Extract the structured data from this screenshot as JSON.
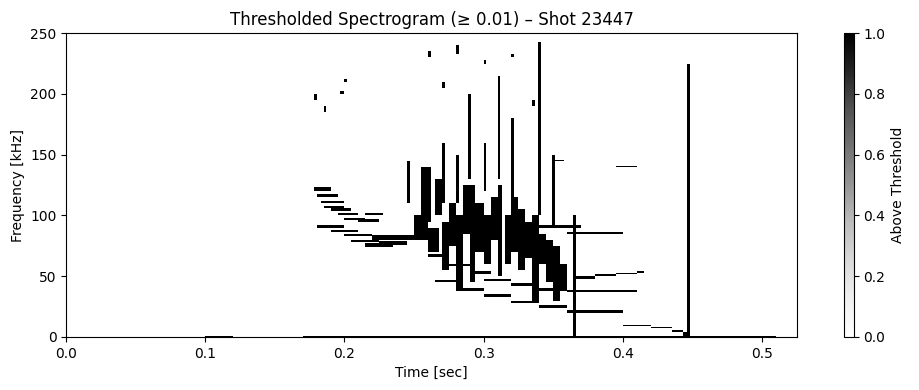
{
  "chart_data": {
    "type": "heatmap",
    "title": "Thresholded Spectrogram (≥ 0.01) – Shot 23447",
    "x_label": "Time [sec]",
    "y_label": "Frequency [kHz]",
    "xlim": [
      0,
      0.525
    ],
    "xticks": [
      {
        "value": 0,
        "label": "0.0"
      },
      0.1,
      0.2,
      0.3,
      0.4,
      0.5
    ],
    "ylim": [
      0,
      250
    ],
    "yticks": [
      0,
      50,
      100,
      150,
      200,
      250
    ],
    "color": "#000000",
    "colorbar_label": "Above Threshold",
    "colorbar_range": [
      0,
      1
    ],
    "colorbar_ticks": [
      {
        "value": 0,
        "label": "0.0"
      },
      0.2,
      0.4,
      0.6,
      0.8,
      {
        "value": 1,
        "label": "1.0"
      }
    ],
    "cells": [
      [
        0.178,
        0.19,
        120,
        123
      ],
      [
        0.18,
        0.195,
        115,
        118
      ],
      [
        0.183,
        0.2,
        110,
        112
      ],
      [
        0.19,
        0.205,
        104,
        106
      ],
      [
        0.195,
        0.21,
        100,
        102
      ],
      [
        0.2,
        0.215,
        96,
        98
      ],
      [
        0.185,
        0.2,
        106,
        108
      ],
      [
        0.18,
        0.2,
        90,
        92
      ],
      [
        0.19,
        0.21,
        86,
        88
      ],
      [
        0.2,
        0.22,
        83,
        85
      ],
      [
        0.205,
        0.225,
        78,
        80
      ],
      [
        0.215,
        0.235,
        74,
        77
      ],
      [
        0.22,
        0.25,
        80,
        84
      ],
      [
        0.225,
        0.245,
        76,
        79
      ],
      [
        0.21,
        0.225,
        95,
        97
      ],
      [
        0.215,
        0.228,
        100,
        102
      ],
      [
        0.25,
        0.26,
        80,
        100
      ],
      [
        0.255,
        0.262,
        95,
        140
      ],
      [
        0.26,
        0.268,
        70,
        90
      ],
      [
        0.265,
        0.27,
        100,
        130
      ],
      [
        0.27,
        0.275,
        55,
        95
      ],
      [
        0.275,
        0.28,
        75,
        110
      ],
      [
        0.28,
        0.285,
        40,
        100
      ],
      [
        0.285,
        0.29,
        85,
        125
      ],
      [
        0.29,
        0.294,
        45,
        125
      ],
      [
        0.294,
        0.3,
        70,
        110
      ],
      [
        0.3,
        0.305,
        60,
        100
      ],
      [
        0.305,
        0.31,
        80,
        115
      ],
      [
        0.31,
        0.313,
        50,
        125
      ],
      [
        0.315,
        0.32,
        60,
        100
      ],
      [
        0.32,
        0.325,
        70,
        115
      ],
      [
        0.325,
        0.33,
        55,
        105
      ],
      [
        0.33,
        0.335,
        65,
        95
      ],
      [
        0.335,
        0.34,
        30,
        100
      ],
      [
        0.34,
        0.345,
        60,
        85
      ],
      [
        0.345,
        0.35,
        45,
        80
      ],
      [
        0.35,
        0.355,
        30,
        75
      ],
      [
        0.355,
        0.36,
        40,
        60
      ],
      [
        0.26,
        0.275,
        66,
        68
      ],
      [
        0.275,
        0.29,
        58,
        60
      ],
      [
        0.29,
        0.305,
        52,
        54
      ],
      [
        0.3,
        0.32,
        46,
        48
      ],
      [
        0.32,
        0.34,
        42,
        44
      ],
      [
        0.34,
        0.36,
        38,
        40
      ],
      [
        0.36,
        0.41,
        37,
        39
      ],
      [
        0.265,
        0.28,
        45,
        47
      ],
      [
        0.28,
        0.3,
        38,
        40
      ],
      [
        0.3,
        0.32,
        33,
        35
      ],
      [
        0.32,
        0.34,
        28,
        30
      ],
      [
        0.34,
        0.36,
        24,
        26
      ],
      [
        0.36,
        0.4,
        20,
        22
      ],
      [
        0.365,
        0.38,
        48,
        50
      ],
      [
        0.38,
        0.395,
        50,
        52
      ],
      [
        0.395,
        0.41,
        52,
        53
      ],
      [
        0.41,
        0.415,
        53,
        54
      ],
      [
        0.36,
        0.4,
        85,
        86
      ],
      [
        0.33,
        0.37,
        90,
        92
      ],
      [
        0.4,
        0.42,
        9,
        10
      ],
      [
        0.42,
        0.435,
        7,
        8
      ],
      [
        0.435,
        0.443,
        4,
        6
      ],
      [
        0.443,
        0.447,
        1,
        4
      ],
      [
        0.395,
        0.41,
        140,
        141
      ],
      [
        0.35,
        0.358,
        145,
        146
      ],
      [
        0.289,
        0.291,
        130,
        200
      ],
      [
        0.31,
        0.312,
        130,
        215
      ],
      [
        0.339,
        0.341,
        100,
        243
      ],
      [
        0.364,
        0.366,
        0,
        100
      ],
      [
        0.32,
        0.322,
        105,
        180
      ],
      [
        0.3,
        0.302,
        120,
        160
      ],
      [
        0.28,
        0.282,
        110,
        150
      ],
      [
        0.349,
        0.351,
        90,
        150
      ],
      [
        0.27,
        0.272,
        110,
        160
      ],
      [
        0.245,
        0.247,
        110,
        145
      ],
      [
        0.178,
        0.18,
        195,
        200
      ],
      [
        0.185,
        0.187,
        185,
        190
      ],
      [
        0.197,
        0.2,
        200,
        202
      ],
      [
        0.2,
        0.202,
        210,
        212
      ],
      [
        0.26,
        0.262,
        230,
        235
      ],
      [
        0.27,
        0.272,
        205,
        210
      ],
      [
        0.28,
        0.282,
        233,
        240
      ],
      [
        0.3,
        0.302,
        225,
        228
      ],
      [
        0.32,
        0.322,
        230,
        233
      ],
      [
        0.335,
        0.337,
        190,
        195
      ],
      [
        0.446,
        0.448,
        0,
        225
      ],
      [
        0.1,
        0.12,
        0,
        1
      ],
      [
        0.17,
        0.51,
        0,
        1
      ]
    ]
  }
}
